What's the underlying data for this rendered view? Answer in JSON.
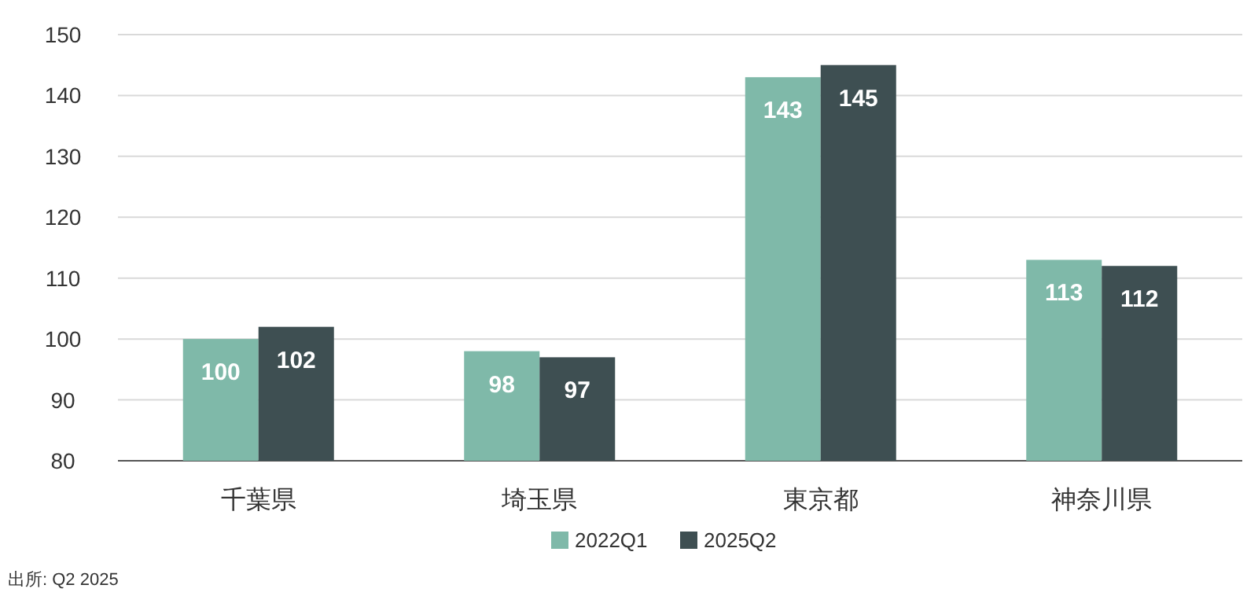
{
  "chart_data": {
    "type": "bar",
    "categories": [
      "千葉県",
      "埼玉県",
      "東京都",
      "神奈川県"
    ],
    "series": [
      {
        "name": "2022Q1",
        "color": "#7fb9a9",
        "values": [
          100,
          98,
          143,
          113
        ]
      },
      {
        "name": "2025Q2",
        "color": "#3e4f52",
        "values": [
          102,
          97,
          145,
          112
        ]
      }
    ],
    "ylim": [
      80,
      150
    ],
    "yticks": [
      80,
      90,
      100,
      110,
      120,
      130,
      140,
      150
    ],
    "grid": "y",
    "legend": "bottom",
    "data_labels": true,
    "annotations": [
      "出所: Q2 2025"
    ]
  }
}
